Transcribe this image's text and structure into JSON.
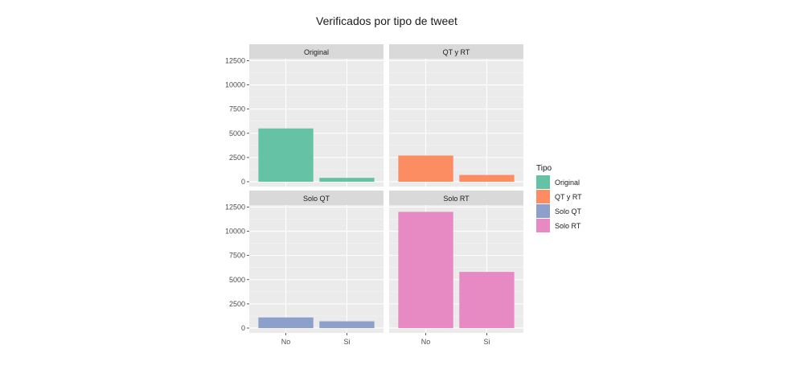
{
  "chart_data": {
    "type": "bar",
    "title": "Verificados por tipo de tweet",
    "xlabel": "",
    "ylabel": "",
    "categories": [
      "No",
      "Si"
    ],
    "yticks": [
      0,
      2500,
      5000,
      7500,
      10000,
      12500
    ],
    "ytick_labels": [
      "0",
      "2500",
      "5000",
      "7500",
      "10000",
      "12500"
    ],
    "ylim": [
      -500,
      12700
    ],
    "grid": true,
    "legend": {
      "title": "Tipo",
      "position": "right",
      "entries": [
        "Original",
        "QT y RT",
        "Solo QT",
        "Solo RT"
      ]
    },
    "series": [
      {
        "name": "Original",
        "color": "#66c2a5",
        "values": [
          5500,
          400
        ]
      },
      {
        "name": "QT y RT",
        "color": "#fc8d62",
        "values": [
          2700,
          700
        ]
      },
      {
        "name": "Solo QT",
        "color": "#8da0cb",
        "values": [
          1100,
          700
        ]
      },
      {
        "name": "Solo RT",
        "color": "#e78ac3",
        "values": [
          12000,
          5800
        ]
      }
    ]
  }
}
